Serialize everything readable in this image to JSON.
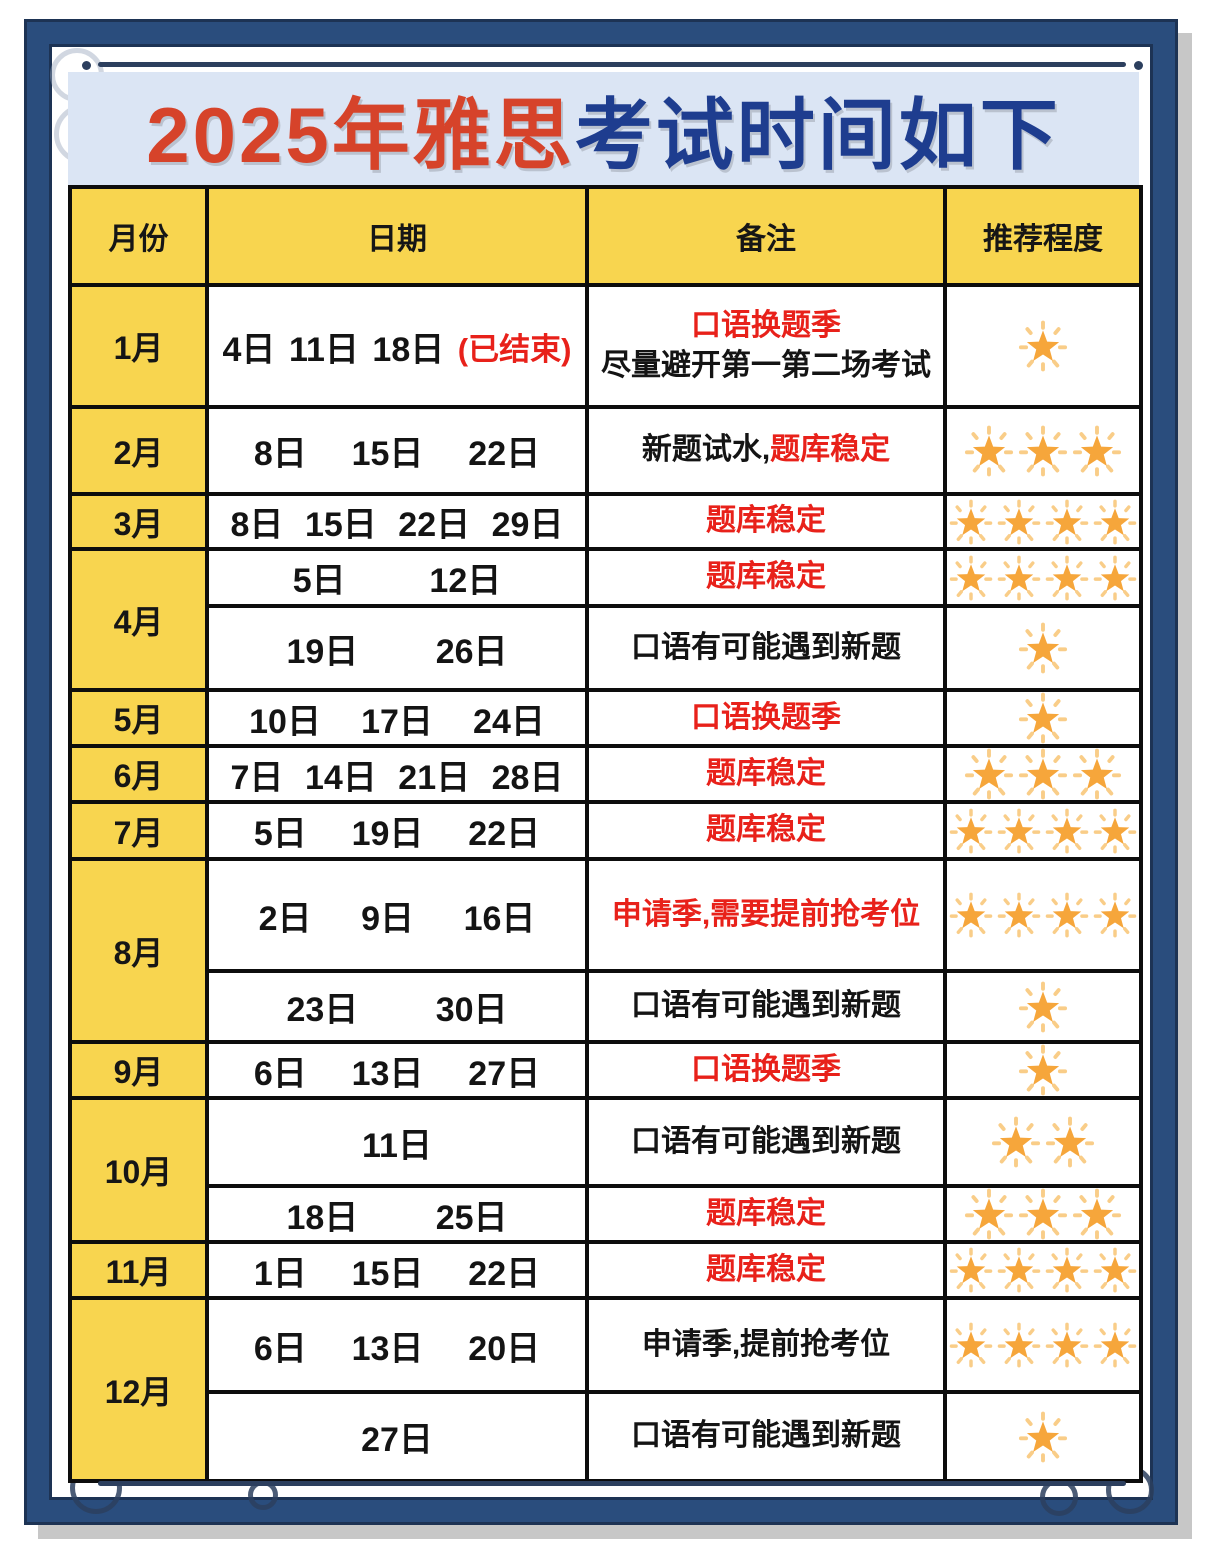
{
  "title": {
    "highlight": "2025年雅思",
    "rest": "考试时间如下"
  },
  "colors": {
    "title_red": "#d6432a",
    "title_blue": "#1e3d8f",
    "note_red": "#e8211a",
    "cell_yellow": "#f8d54f",
    "star_orange": "#f6a63b",
    "star_ray": "#f9cd88",
    "frame_navy": "#2a4d7d",
    "band_blue": "#dbe5f4"
  },
  "table": {
    "headers": [
      "月份",
      "日期",
      "备注",
      "推荐程度"
    ],
    "months": [
      {
        "month": "1月",
        "rows": [
          {
            "dates": [
              "4日",
              "11日",
              "18日"
            ],
            "dates_suffix": "(已结束)",
            "note_lines": [
              [
                {
                  "text": "口语换题季",
                  "color": "red"
                }
              ],
              [
                {
                  "text": "尽量避开第一第二场考试",
                  "color": "black"
                }
              ]
            ],
            "stars": 1
          }
        ]
      },
      {
        "month": "2月",
        "rows": [
          {
            "dates": [
              "8日",
              "15日",
              "22日"
            ],
            "note_lines": [
              [
                {
                  "text": "新题试水,",
                  "color": "black"
                },
                {
                  "text": "题库稳定",
                  "color": "red"
                }
              ]
            ],
            "stars": 3
          }
        ]
      },
      {
        "month": "3月",
        "rows": [
          {
            "dates": [
              "8日",
              "15日",
              "22日",
              "29日"
            ],
            "note_lines": [
              [
                {
                  "text": "题库稳定",
                  "color": "red"
                }
              ]
            ],
            "stars": 4
          }
        ]
      },
      {
        "month": "4月",
        "rows": [
          {
            "dates": [
              "5日",
              "12日"
            ],
            "note_lines": [
              [
                {
                  "text": "题库稳定",
                  "color": "red"
                }
              ]
            ],
            "stars": 4
          },
          {
            "dates": [
              "19日",
              "26日"
            ],
            "note_lines": [
              [
                {
                  "text": "口语有可能遇到新题",
                  "color": "black"
                }
              ]
            ],
            "stars": 1
          }
        ]
      },
      {
        "month": "5月",
        "rows": [
          {
            "dates": [
              "10日",
              "17日",
              "24日"
            ],
            "note_lines": [
              [
                {
                  "text": "口语换题季",
                  "color": "red"
                }
              ]
            ],
            "stars": 1
          }
        ]
      },
      {
        "month": "6月",
        "rows": [
          {
            "dates": [
              "7日",
              "14日",
              "21日",
              "28日"
            ],
            "note_lines": [
              [
                {
                  "text": "题库稳定",
                  "color": "red"
                }
              ]
            ],
            "stars": 3
          }
        ]
      },
      {
        "month": "7月",
        "rows": [
          {
            "dates": [
              "5日",
              "19日",
              "22日"
            ],
            "note_lines": [
              [
                {
                  "text": "题库稳定",
                  "color": "red"
                }
              ]
            ],
            "stars": 4
          }
        ]
      },
      {
        "month": "8月",
        "rows": [
          {
            "dates": [
              "2日",
              "9日",
              "16日"
            ],
            "note_lines": [
              [
                {
                  "text": "申请季,需要提前抢考位",
                  "color": "red"
                }
              ]
            ],
            "stars": 4
          },
          {
            "dates": [
              "23日",
              "30日"
            ],
            "note_lines": [
              [
                {
                  "text": "口语有可能遇到新题",
                  "color": "black"
                }
              ]
            ],
            "stars": 1
          }
        ]
      },
      {
        "month": "9月",
        "rows": [
          {
            "dates": [
              "6日",
              "13日",
              "27日"
            ],
            "note_lines": [
              [
                {
                  "text": "口语换题季",
                  "color": "red"
                }
              ]
            ],
            "stars": 1
          }
        ]
      },
      {
        "month": "10月",
        "rows": [
          {
            "dates": [
              "11日"
            ],
            "note_lines": [
              [
                {
                  "text": "口语有可能遇到新题",
                  "color": "black"
                }
              ]
            ],
            "stars": 2
          },
          {
            "dates": [
              "18日",
              "25日"
            ],
            "note_lines": [
              [
                {
                  "text": "题库稳定",
                  "color": "red"
                }
              ]
            ],
            "stars": 3
          }
        ]
      },
      {
        "month": "11月",
        "rows": [
          {
            "dates": [
              "1日",
              "15日",
              "22日"
            ],
            "note_lines": [
              [
                {
                  "text": "题库稳定",
                  "color": "red"
                }
              ]
            ],
            "stars": 4
          }
        ]
      },
      {
        "month": "12月",
        "rows": [
          {
            "dates": [
              "6日",
              "13日",
              "20日"
            ],
            "note_lines": [
              [
                {
                  "text": "申请季,提前抢考位",
                  "color": "black"
                }
              ]
            ],
            "stars": 4
          },
          {
            "dates": [
              "27日"
            ],
            "note_lines": [
              [
                {
                  "text": "口语有可能遇到新题",
                  "color": "black"
                }
              ]
            ],
            "stars": 1
          }
        ]
      }
    ]
  }
}
